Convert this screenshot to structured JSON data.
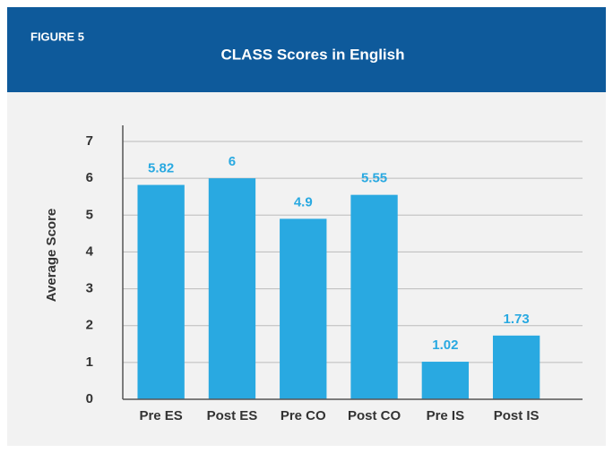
{
  "header": {
    "figure": "FIGURE 5"
  },
  "chart_data": {
    "type": "bar",
    "title": "CLASS Scores in English",
    "y_label": "Average Score",
    "categories": [
      "Pre ES",
      "Post ES",
      "Pre CO",
      "Post CO",
      "Pre IS",
      "Post IS"
    ],
    "values": [
      5.82,
      6,
      4.9,
      5.55,
      1.02,
      1.73
    ],
    "color": "#29a9e1",
    "ylim": [
      0,
      7
    ],
    "yticks": [
      0,
      1,
      2,
      3,
      4,
      5,
      6,
      7
    ],
    "grid": true
  }
}
